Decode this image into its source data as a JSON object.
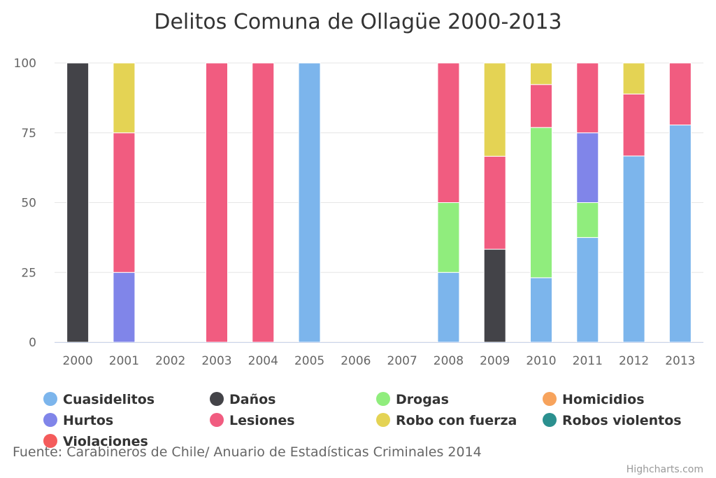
{
  "chart_data": {
    "type": "bar",
    "stacking": "percent",
    "title": "Delitos Comuna de Ollagüe 2000-2013",
    "caption": "Fuente: Carabineros de Chile/ Anuario de Estadísticas Criminales 2014",
    "credits": "Highcharts.com",
    "categories": [
      "2000",
      "2001",
      "2002",
      "2003",
      "2004",
      "2005",
      "2006",
      "2007",
      "2008",
      "2009",
      "2010",
      "2011",
      "2012",
      "2013"
    ],
    "ylim": [
      0,
      100
    ],
    "yticks": [
      "0",
      "25",
      "50",
      "75",
      "100"
    ],
    "grid": true,
    "legend_placement": "bottom",
    "series": [
      {
        "name": "Cuasidelitos",
        "color": "#7cb5ec",
        "values": [
          0,
          0,
          0,
          0,
          0,
          100,
          0,
          0,
          25,
          0,
          23.1,
          37.5,
          66.7,
          77.8
        ]
      },
      {
        "name": "Daños",
        "color": "#434348",
        "values": [
          100,
          0,
          0,
          0,
          0,
          0,
          0,
          0,
          0,
          33.3,
          0,
          0,
          0,
          0
        ]
      },
      {
        "name": "Drogas",
        "color": "#90ed7d",
        "values": [
          0,
          0,
          0,
          0,
          0,
          0,
          0,
          0,
          25,
          0,
          53.8,
          12.5,
          0,
          0
        ]
      },
      {
        "name": "Homicidios",
        "color": "#f7a35c",
        "values": [
          0,
          0,
          0,
          0,
          0,
          0,
          0,
          0,
          0,
          0,
          0,
          0,
          0,
          0
        ]
      },
      {
        "name": "Hurtos",
        "color": "#8085e9",
        "values": [
          0,
          25,
          0,
          0,
          0,
          0,
          0,
          0,
          0,
          0,
          0,
          25,
          0,
          0
        ]
      },
      {
        "name": "Lesiones",
        "color": "#f15c80",
        "values": [
          0,
          50,
          0,
          100,
          100,
          0,
          0,
          0,
          50,
          33.3,
          15.4,
          25,
          22.2,
          22.2
        ]
      },
      {
        "name": "Robo con fuerza",
        "color": "#e4d354",
        "values": [
          0,
          25,
          0,
          0,
          0,
          0,
          0,
          0,
          0,
          33.4,
          7.7,
          0,
          11.1,
          0
        ]
      },
      {
        "name": "Robos violentos",
        "color": "#2b908f",
        "values": [
          0,
          0,
          0,
          0,
          0,
          0,
          0,
          0,
          0,
          0,
          0,
          0,
          0,
          0
        ]
      },
      {
        "name": "Violaciones",
        "color": "#f45b5b",
        "values": [
          0,
          0,
          0,
          0,
          0,
          0,
          0,
          0,
          0,
          0,
          0,
          0,
          0,
          0
        ]
      }
    ]
  }
}
